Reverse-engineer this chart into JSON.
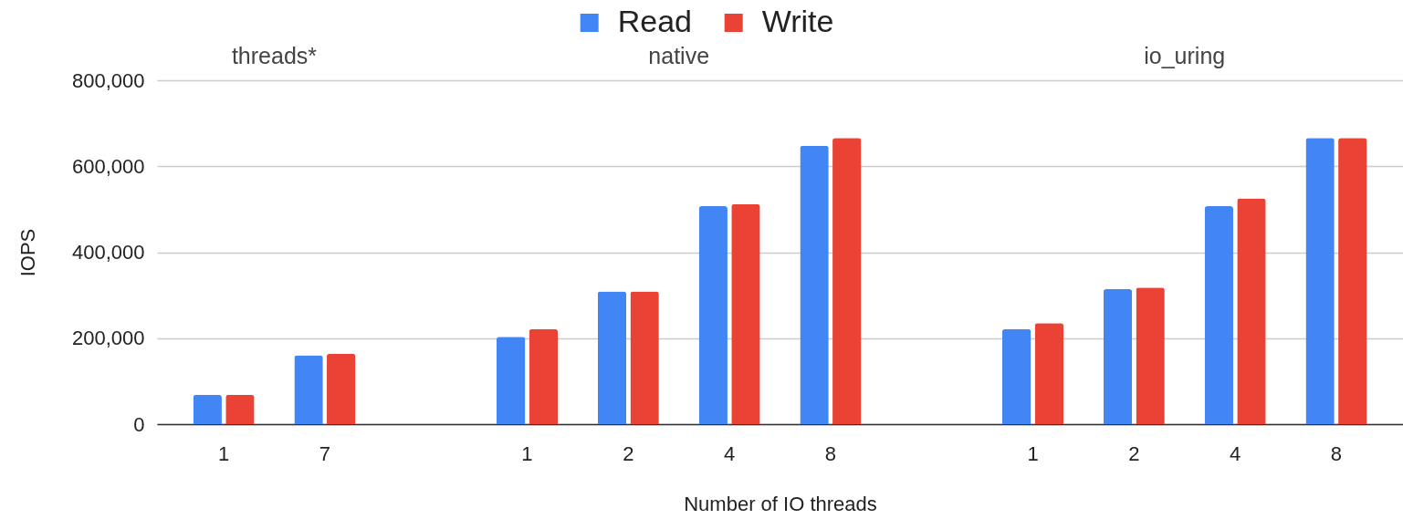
{
  "chart_data": {
    "type": "bar",
    "categories": [
      "1",
      "7",
      null,
      "1",
      "2",
      "4",
      "8",
      null,
      "1",
      "2",
      "4",
      "8"
    ],
    "series": [
      {
        "name": "Read",
        "color": "#4285f4",
        "values": [
          68000,
          160000,
          null,
          203000,
          309000,
          507000,
          648000,
          null,
          221000,
          314000,
          507000,
          666000
        ]
      },
      {
        "name": "Write",
        "color": "#ea4335",
        "values": [
          68000,
          164000,
          null,
          221000,
          309000,
          512000,
          666000,
          null,
          235000,
          318000,
          525000,
          666000
        ]
      }
    ],
    "xlabel": "Number of IO threads",
    "ylabel": "IOPS",
    "ylim": [
      0,
      800000
    ],
    "yticks": [
      0,
      {
        "value": 200000,
        "label": "200,000"
      },
      {
        "value": 400000,
        "label": "400,000"
      },
      {
        "value": 600000,
        "label": "600,000"
      },
      {
        "value": 800000,
        "label": "800,000"
      }
    ],
    "grid": "y",
    "legend": "top",
    "annotations": [
      "threads*",
      "native",
      "io_uring"
    ]
  }
}
